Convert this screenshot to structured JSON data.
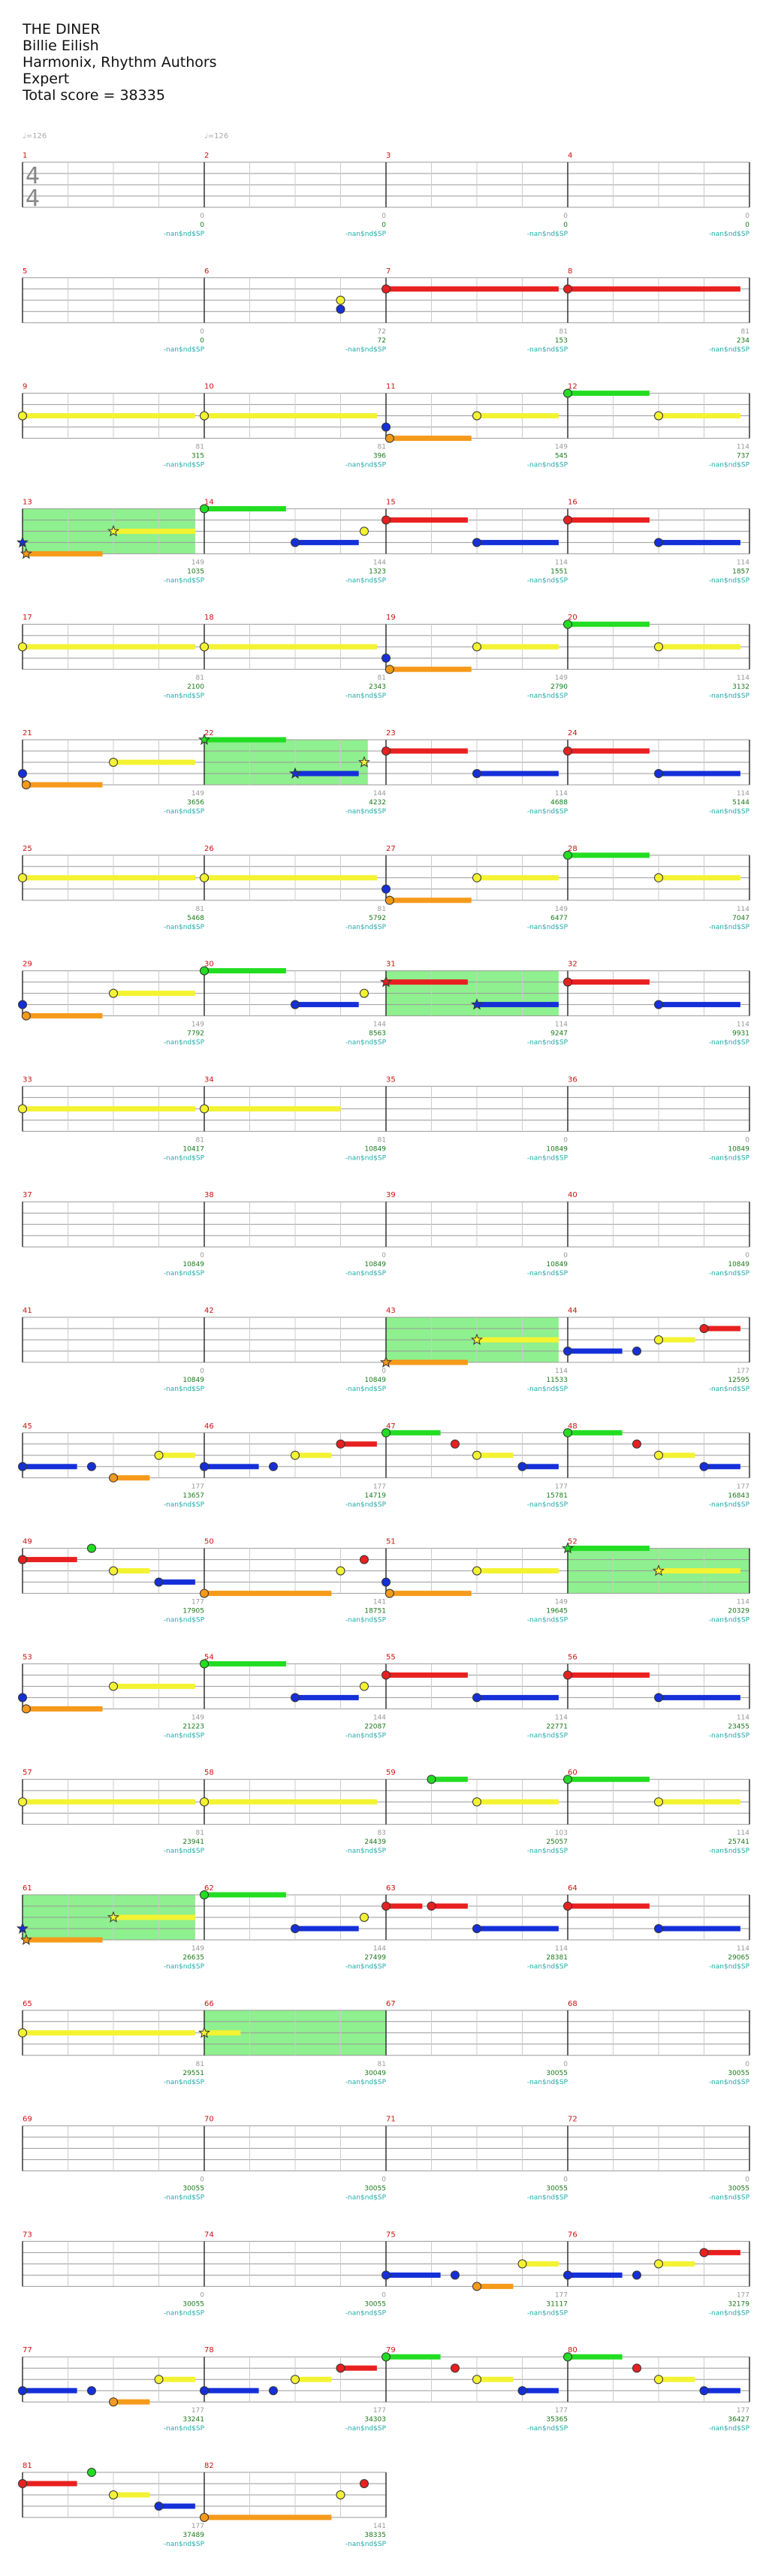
{
  "song": {
    "title": "THE DINER",
    "artist": "Billie Eilish",
    "charter": "Harmonix, Rhythm Authors",
    "difficulty": "Expert",
    "total_score_label": "Total score = 38335"
  },
  "tempo_marks": [
    "♩=126",
    "♩=126"
  ],
  "time_signature": {
    "top": "4",
    "bottom": "4"
  },
  "sp_label": "-nan$nd$SP",
  "colors": {
    "green": "#22dd22",
    "red": "#e82020",
    "yellow": "#f3f332",
    "blue": "#1530d8",
    "orange": "#f59a1a",
    "sp": "#8ef08e",
    "measure_number": "#cc1111",
    "score": "#1a7a1a",
    "sp_text": "#22aaaa",
    "staff": "#999999"
  },
  "measures": [
    {
      "n": "1",
      "ns": "0",
      "sc": "0"
    },
    {
      "n": "2",
      "ns": "0",
      "sc": "0"
    },
    {
      "n": "3",
      "ns": "0",
      "sc": "0"
    },
    {
      "n": "4",
      "ns": "0",
      "sc": "0"
    },
    {
      "n": "5",
      "ns": "0",
      "sc": "0"
    },
    {
      "n": "6",
      "ns": "72",
      "sc": "72"
    },
    {
      "n": "7",
      "ns": "81",
      "sc": "153"
    },
    {
      "n": "8",
      "ns": "81",
      "sc": "234"
    },
    {
      "n": "9",
      "ns": "81",
      "sc": "315"
    },
    {
      "n": "10",
      "ns": "81",
      "sc": "396"
    },
    {
      "n": "11",
      "ns": "149",
      "sc": "545"
    },
    {
      "n": "12",
      "ns": "114",
      "sc": "737"
    },
    {
      "n": "13",
      "ns": "149",
      "sc": "1035"
    },
    {
      "n": "14",
      "ns": "144",
      "sc": "1323"
    },
    {
      "n": "15",
      "ns": "114",
      "sc": "1551"
    },
    {
      "n": "16",
      "ns": "114",
      "sc": "1857"
    },
    {
      "n": "17",
      "ns": "81",
      "sc": "2100"
    },
    {
      "n": "18",
      "ns": "81",
      "sc": "2343"
    },
    {
      "n": "19",
      "ns": "149",
      "sc": "2790"
    },
    {
      "n": "20",
      "ns": "114",
      "sc": "3132"
    },
    {
      "n": "21",
      "ns": "149",
      "sc": "3656"
    },
    {
      "n": "22",
      "ns": "144",
      "sc": "4232"
    },
    {
      "n": "23",
      "ns": "114",
      "sc": "4688"
    },
    {
      "n": "24",
      "ns": "114",
      "sc": "5144"
    },
    {
      "n": "25",
      "ns": "81",
      "sc": "5468"
    },
    {
      "n": "26",
      "ns": "81",
      "sc": "5792"
    },
    {
      "n": "27",
      "ns": "149",
      "sc": "6477"
    },
    {
      "n": "28",
      "ns": "114",
      "sc": "7047"
    },
    {
      "n": "29",
      "ns": "149",
      "sc": "7792"
    },
    {
      "n": "30",
      "ns": "144",
      "sc": "8563"
    },
    {
      "n": "31",
      "ns": "114",
      "sc": "9247"
    },
    {
      "n": "32",
      "ns": "114",
      "sc": "9931"
    },
    {
      "n": "33",
      "ns": "81",
      "sc": "10417"
    },
    {
      "n": "34",
      "ns": "81",
      "sc": "10849"
    },
    {
      "n": "35",
      "ns": "0",
      "sc": "10849"
    },
    {
      "n": "36",
      "ns": "0",
      "sc": "10849"
    },
    {
      "n": "37",
      "ns": "0",
      "sc": "10849"
    },
    {
      "n": "38",
      "ns": "0",
      "sc": "10849"
    },
    {
      "n": "39",
      "ns": "0",
      "sc": "10849"
    },
    {
      "n": "40",
      "ns": "0",
      "sc": "10849"
    },
    {
      "n": "41",
      "ns": "0",
      "sc": "10849"
    },
    {
      "n": "42",
      "ns": "0",
      "sc": "10849"
    },
    {
      "n": "43",
      "ns": "114",
      "sc": "11533"
    },
    {
      "n": "44",
      "ns": "177",
      "sc": "12595"
    },
    {
      "n": "45",
      "ns": "177",
      "sc": "13657"
    },
    {
      "n": "46",
      "ns": "177",
      "sc": "14719"
    },
    {
      "n": "47",
      "ns": "177",
      "sc": "15781"
    },
    {
      "n": "48",
      "ns": "177",
      "sc": "16843"
    },
    {
      "n": "49",
      "ns": "177",
      "sc": "17905"
    },
    {
      "n": "50",
      "ns": "141",
      "sc": "18751"
    },
    {
      "n": "51",
      "ns": "149",
      "sc": "19645"
    },
    {
      "n": "52",
      "ns": "114",
      "sc": "20329"
    },
    {
      "n": "53",
      "ns": "149",
      "sc": "21223"
    },
    {
      "n": "54",
      "ns": "144",
      "sc": "22087"
    },
    {
      "n": "55",
      "ns": "114",
      "sc": "22771"
    },
    {
      "n": "56",
      "ns": "114",
      "sc": "23455"
    },
    {
      "n": "57",
      "ns": "81",
      "sc": "23941"
    },
    {
      "n": "58",
      "ns": "83",
      "sc": "24439"
    },
    {
      "n": "59",
      "ns": "103",
      "sc": "25057"
    },
    {
      "n": "60",
      "ns": "114",
      "sc": "25741"
    },
    {
      "n": "61",
      "ns": "149",
      "sc": "26635"
    },
    {
      "n": "62",
      "ns": "144",
      "sc": "27499"
    },
    {
      "n": "63",
      "ns": "114",
      "sc": "28381"
    },
    {
      "n": "64",
      "ns": "114",
      "sc": "29065"
    },
    {
      "n": "65",
      "ns": "81",
      "sc": "29551"
    },
    {
      "n": "66",
      "ns": "81",
      "sc": "30049"
    },
    {
      "n": "67",
      "ns": "0",
      "sc": "30055"
    },
    {
      "n": "68",
      "ns": "0",
      "sc": "30055"
    },
    {
      "n": "69",
      "ns": "0",
      "sc": "30055"
    },
    {
      "n": "70",
      "ns": "0",
      "sc": "30055"
    },
    {
      "n": "71",
      "ns": "0",
      "sc": "30055"
    },
    {
      "n": "72",
      "ns": "0",
      "sc": "30055"
    },
    {
      "n": "73",
      "ns": "0",
      "sc": "30055"
    },
    {
      "n": "74",
      "ns": "0",
      "sc": "30055"
    },
    {
      "n": "75",
      "ns": "177",
      "sc": "31117"
    },
    {
      "n": "76",
      "ns": "177",
      "sc": "32179"
    },
    {
      "n": "77",
      "ns": "177",
      "sc": "33241"
    },
    {
      "n": "78",
      "ns": "177",
      "sc": "34303"
    },
    {
      "n": "79",
      "ns": "177",
      "sc": "35365"
    },
    {
      "n": "80",
      "ns": "177",
      "sc": "36427"
    },
    {
      "n": "81",
      "ns": "177",
      "sc": "37489"
    },
    {
      "n": "82",
      "ns": "141",
      "sc": "38335"
    }
  ],
  "sp_phrases": [
    {
      "m": 13,
      "s": 0,
      "e": 0.95
    },
    {
      "m": 22,
      "s": 0,
      "e": 0.9
    },
    {
      "m": 31,
      "s": 0,
      "e": 0.95
    },
    {
      "m": 43,
      "s": 0,
      "e": 0.95
    },
    {
      "m": 52,
      "s": 0,
      "e": 1
    },
    {
      "m": 61,
      "s": 0,
      "e": 0.95
    },
    {
      "m": 66,
      "s": 0,
      "e": 1
    }
  ],
  "notes": [
    {
      "m": 6,
      "b": 0.75,
      "c": "yellow"
    },
    {
      "m": 6,
      "b": 0.75,
      "c": "blue",
      "off": -0.2
    },
    {
      "m": 7,
      "b": 0,
      "c": "red",
      "len": 0.95
    },
    {
      "m": 8,
      "b": 0,
      "c": "red",
      "len": 0.95
    },
    {
      "m": 9,
      "b": 0,
      "c": "yellow",
      "len": 0.95
    },
    {
      "m": 10,
      "b": 0,
      "c": "yellow",
      "len": 0.95
    },
    {
      "m": 11,
      "b": 0,
      "c": "blue"
    },
    {
      "m": 11,
      "b": 0.02,
      "c": "orange",
      "len": 0.45
    },
    {
      "m": 11,
      "b": 0.5,
      "c": "yellow",
      "len": 0.45
    },
    {
      "m": 12,
      "b": 0,
      "c": "green",
      "len": 0.45
    },
    {
      "m": 12,
      "b": 0.5,
      "c": "yellow",
      "len": 0.45
    },
    {
      "m": 13,
      "b": 0,
      "c": "blue",
      "star": true
    },
    {
      "m": 13,
      "b": 0.02,
      "c": "orange",
      "len": 0.42,
      "star": true
    },
    {
      "m": 13,
      "b": 0.5,
      "c": "yellow",
      "len": 0.45,
      "star": true
    },
    {
      "m": 14,
      "b": 0,
      "c": "green",
      "len": 0.45
    },
    {
      "m": 14,
      "b": 0.5,
      "c": "blue",
      "len": 0.35
    },
    {
      "m": 14,
      "b": 0.88,
      "c": "yellow"
    },
    {
      "m": 15,
      "b": 0,
      "c": "red",
      "len": 0.45
    },
    {
      "m": 15,
      "b": 0.5,
      "c": "blue",
      "len": 0.45
    },
    {
      "m": 16,
      "b": 0,
      "c": "red",
      "len": 0.45
    },
    {
      "m": 16,
      "b": 0.5,
      "c": "blue",
      "len": 0.45
    },
    {
      "m": 17,
      "b": 0,
      "c": "yellow",
      "len": 0.95
    },
    {
      "m": 18,
      "b": 0,
      "c": "yellow",
      "len": 0.95
    },
    {
      "m": 19,
      "b": 0,
      "c": "blue"
    },
    {
      "m": 19,
      "b": 0.02,
      "c": "orange",
      "len": 0.45
    },
    {
      "m": 19,
      "b": 0.5,
      "c": "yellow",
      "len": 0.45
    },
    {
      "m": 20,
      "b": 0,
      "c": "green",
      "len": 0.45
    },
    {
      "m": 20,
      "b": 0.5,
      "c": "yellow",
      "len": 0.45
    },
    {
      "m": 21,
      "b": 0,
      "c": "blue"
    },
    {
      "m": 21,
      "b": 0.02,
      "c": "orange",
      "len": 0.42
    },
    {
      "m": 21,
      "b": 0.5,
      "c": "yellow",
      "len": 0.45
    },
    {
      "m": 22,
      "b": 0,
      "c": "green",
      "len": 0.45,
      "star": true
    },
    {
      "m": 22,
      "b": 0.5,
      "c": "blue",
      "len": 0.35,
      "star": true
    },
    {
      "m": 22,
      "b": 0.88,
      "c": "yellow",
      "star": true
    },
    {
      "m": 23,
      "b": 0,
      "c": "red",
      "len": 0.45
    },
    {
      "m": 23,
      "b": 0.5,
      "c": "blue",
      "len": 0.45
    },
    {
      "m": 24,
      "b": 0,
      "c": "red",
      "len": 0.45
    },
    {
      "m": 24,
      "b": 0.5,
      "c": "blue",
      "len": 0.45
    },
    {
      "m": 25,
      "b": 0,
      "c": "yellow",
      "len": 0.95
    },
    {
      "m": 26,
      "b": 0,
      "c": "yellow",
      "len": 0.95
    },
    {
      "m": 27,
      "b": 0,
      "c": "blue"
    },
    {
      "m": 27,
      "b": 0.02,
      "c": "orange",
      "len": 0.45
    },
    {
      "m": 27,
      "b": 0.5,
      "c": "yellow",
      "len": 0.45
    },
    {
      "m": 28,
      "b": 0,
      "c": "green",
      "len": 0.45
    },
    {
      "m": 28,
      "b": 0.5,
      "c": "yellow",
      "len": 0.45
    },
    {
      "m": 29,
      "b": 0,
      "c": "blue"
    },
    {
      "m": 29,
      "b": 0.02,
      "c": "orange",
      "len": 0.42
    },
    {
      "m": 29,
      "b": 0.5,
      "c": "yellow",
      "len": 0.45
    },
    {
      "m": 30,
      "b": 0,
      "c": "green",
      "len": 0.45
    },
    {
      "m": 30,
      "b": 0.5,
      "c": "blue",
      "len": 0.35
    },
    {
      "m": 30,
      "b": 0.88,
      "c": "yellow"
    },
    {
      "m": 31,
      "b": 0,
      "c": "red",
      "len": 0.45,
      "star": true
    },
    {
      "m": 31,
      "b": 0.5,
      "c": "blue",
      "len": 0.45,
      "star": true
    },
    {
      "m": 32,
      "b": 0,
      "c": "red",
      "len": 0.45
    },
    {
      "m": 32,
      "b": 0.5,
      "c": "blue",
      "len": 0.45
    },
    {
      "m": 33,
      "b": 0,
      "c": "yellow",
      "len": 0.95
    },
    {
      "m": 34,
      "b": 0,
      "c": "yellow",
      "len": 0.75
    },
    {
      "m": 43,
      "b": 0,
      "c": "orange",
      "len": 0.45,
      "star": true
    },
    {
      "m": 43,
      "b": 0.5,
      "c": "yellow",
      "len": 0.45,
      "star": true
    },
    {
      "m": 44,
      "b": 0,
      "c": "blue",
      "len": 0.3
    },
    {
      "m": 44,
      "b": 0.38,
      "c": "blue"
    },
    {
      "m": 44,
      "b": 0.5,
      "c": "yellow",
      "len": 0.2
    },
    {
      "m": 44,
      "b": 0.75,
      "c": "red",
      "len": 0.2
    },
    {
      "m": 45,
      "b": 0,
      "c": "blue",
      "len": 0.3
    },
    {
      "m": 45,
      "b": 0.38,
      "c": "blue"
    },
    {
      "m": 45,
      "b": 0.5,
      "c": "orange",
      "len": 0.2
    },
    {
      "m": 45,
      "b": 0.75,
      "c": "yellow",
      "len": 0.2
    },
    {
      "m": 46,
      "b": 0,
      "c": "blue",
      "len": 0.3
    },
    {
      "m": 46,
      "b": 0.38,
      "c": "blue"
    },
    {
      "m": 46,
      "b": 0.5,
      "c": "yellow",
      "len": 0.2
    },
    {
      "m": 46,
      "b": 0.75,
      "c": "red",
      "len": 0.2
    },
    {
      "m": 47,
      "b": 0,
      "c": "green",
      "len": 0.3
    },
    {
      "m": 47,
      "b": 0.38,
      "c": "red"
    },
    {
      "m": 47,
      "b": 0.5,
      "c": "yellow",
      "len": 0.2
    },
    {
      "m": 47,
      "b": 0.75,
      "c": "blue",
      "len": 0.2
    },
    {
      "m": 48,
      "b": 0,
      "c": "green",
      "len": 0.3
    },
    {
      "m": 48,
      "b": 0.38,
      "c": "red"
    },
    {
      "m": 48,
      "b": 0.5,
      "c": "yellow",
      "len": 0.2
    },
    {
      "m": 48,
      "b": 0.75,
      "c": "blue",
      "len": 0.2
    },
    {
      "m": 49,
      "b": 0,
      "c": "red",
      "len": 0.3
    },
    {
      "m": 49,
      "b": 0.38,
      "c": "green"
    },
    {
      "m": 49,
      "b": 0.5,
      "c": "yellow",
      "len": 0.2
    },
    {
      "m": 49,
      "b": 0.75,
      "c": "blue",
      "len": 0.2
    },
    {
      "m": 50,
      "b": 0,
      "c": "orange",
      "len": 0.7
    },
    {
      "m": 50,
      "b": 0.75,
      "c": "yellow"
    },
    {
      "m": 50,
      "b": 0.88,
      "c": "red"
    },
    {
      "m": 51,
      "b": 0,
      "c": "blue"
    },
    {
      "m": 51,
      "b": 0.02,
      "c": "orange",
      "len": 0.45
    },
    {
      "m": 51,
      "b": 0.5,
      "c": "yellow",
      "len": 0.45
    },
    {
      "m": 52,
      "b": 0,
      "c": "green",
      "len": 0.45,
      "star": true
    },
    {
      "m": 52,
      "b": 0.5,
      "c": "yellow",
      "len": 0.45,
      "star": true
    },
    {
      "m": 53,
      "b": 0,
      "c": "blue"
    },
    {
      "m": 53,
      "b": 0.02,
      "c": "orange",
      "len": 0.42
    },
    {
      "m": 53,
      "b": 0.5,
      "c": "yellow",
      "len": 0.45
    },
    {
      "m": 54,
      "b": 0,
      "c": "green",
      "len": 0.45
    },
    {
      "m": 54,
      "b": 0.5,
      "c": "blue",
      "len": 0.35
    },
    {
      "m": 54,
      "b": 0.88,
      "c": "yellow"
    },
    {
      "m": 55,
      "b": 0,
      "c": "red",
      "len": 0.45
    },
    {
      "m": 55,
      "b": 0.5,
      "c": "blue",
      "len": 0.45
    },
    {
      "m": 56,
      "b": 0,
      "c": "red",
      "len": 0.45
    },
    {
      "m": 56,
      "b": 0.5,
      "c": "blue",
      "len": 0.45
    },
    {
      "m": 57,
      "b": 0,
      "c": "yellow",
      "len": 0.95
    },
    {
      "m": 58,
      "b": 0,
      "c": "yellow",
      "len": 0.95
    },
    {
      "m": 59,
      "b": 0.25,
      "c": "green",
      "len": 0.2
    },
    {
      "m": 59,
      "b": 0.5,
      "c": "yellow",
      "len": 0.45
    },
    {
      "m": 60,
      "b": 0,
      "c": "green",
      "len": 0.45
    },
    {
      "m": 60,
      "b": 0.5,
      "c": "yellow",
      "len": 0.45
    },
    {
      "m": 61,
      "b": 0,
      "c": "blue",
      "star": true
    },
    {
      "m": 61,
      "b": 0.02,
      "c": "orange",
      "len": 0.42,
      "star": true
    },
    {
      "m": 61,
      "b": 0.5,
      "c": "yellow",
      "len": 0.45,
      "star": true
    },
    {
      "m": 62,
      "b": 0,
      "c": "green",
      "len": 0.45
    },
    {
      "m": 62,
      "b": 0.5,
      "c": "blue",
      "len": 0.35
    },
    {
      "m": 62,
      "b": 0.88,
      "c": "yellow"
    },
    {
      "m": 63,
      "b": 0,
      "c": "red",
      "len": 0.2
    },
    {
      "m": 63,
      "b": 0.25,
      "c": "red",
      "len": 0.2
    },
    {
      "m": 63,
      "b": 0.5,
      "c": "blue",
      "len": 0.45
    },
    {
      "m": 64,
      "b": 0,
      "c": "red",
      "len": 0.45
    },
    {
      "m": 64,
      "b": 0.5,
      "c": "blue",
      "len": 0.45
    },
    {
      "m": 65,
      "b": 0,
      "c": "yellow",
      "len": 0.95
    },
    {
      "m": 66,
      "b": 0,
      "c": "yellow",
      "len": 0.2,
      "star": true
    },
    {
      "m": 75,
      "b": 0,
      "c": "blue",
      "len": 0.3
    },
    {
      "m": 75,
      "b": 0.38,
      "c": "blue"
    },
    {
      "m": 75,
      "b": 0.5,
      "c": "orange",
      "len": 0.2
    },
    {
      "m": 75,
      "b": 0.75,
      "c": "yellow",
      "len": 0.2
    },
    {
      "m": 76,
      "b": 0,
      "c": "blue",
      "len": 0.3
    },
    {
      "m": 76,
      "b": 0.38,
      "c": "blue"
    },
    {
      "m": 76,
      "b": 0.5,
      "c": "yellow",
      "len": 0.2
    },
    {
      "m": 76,
      "b": 0.75,
      "c": "red",
      "len": 0.2
    },
    {
      "m": 77,
      "b": 0,
      "c": "blue",
      "len": 0.3
    },
    {
      "m": 77,
      "b": 0.38,
      "c": "blue"
    },
    {
      "m": 77,
      "b": 0.5,
      "c": "orange",
      "len": 0.2
    },
    {
      "m": 77,
      "b": 0.75,
      "c": "yellow",
      "len": 0.2
    },
    {
      "m": 78,
      "b": 0,
      "c": "blue",
      "len": 0.3
    },
    {
      "m": 78,
      "b": 0.38,
      "c": "blue"
    },
    {
      "m": 78,
      "b": 0.5,
      "c": "yellow",
      "len": 0.2
    },
    {
      "m": 78,
      "b": 0.75,
      "c": "red",
      "len": 0.2
    },
    {
      "m": 79,
      "b": 0,
      "c": "green",
      "len": 0.3
    },
    {
      "m": 79,
      "b": 0.38,
      "c": "red"
    },
    {
      "m": 79,
      "b": 0.5,
      "c": "yellow",
      "len": 0.2
    },
    {
      "m": 79,
      "b": 0.75,
      "c": "blue",
      "len": 0.2
    },
    {
      "m": 80,
      "b": 0,
      "c": "green",
      "len": 0.3
    },
    {
      "m": 80,
      "b": 0.38,
      "c": "red"
    },
    {
      "m": 80,
      "b": 0.5,
      "c": "yellow",
      "len": 0.2
    },
    {
      "m": 80,
      "b": 0.75,
      "c": "blue",
      "len": 0.2
    },
    {
      "m": 81,
      "b": 0,
      "c": "red",
      "len": 0.3
    },
    {
      "m": 81,
      "b": 0.38,
      "c": "green"
    },
    {
      "m": 81,
      "b": 0.5,
      "c": "yellow",
      "len": 0.2
    },
    {
      "m": 81,
      "b": 0.75,
      "c": "blue",
      "len": 0.2
    },
    {
      "m": 82,
      "b": 0,
      "c": "orange",
      "len": 0.7
    },
    {
      "m": 82,
      "b": 0.75,
      "c": "yellow"
    },
    {
      "m": 82,
      "b": 0.88,
      "c": "red"
    }
  ]
}
